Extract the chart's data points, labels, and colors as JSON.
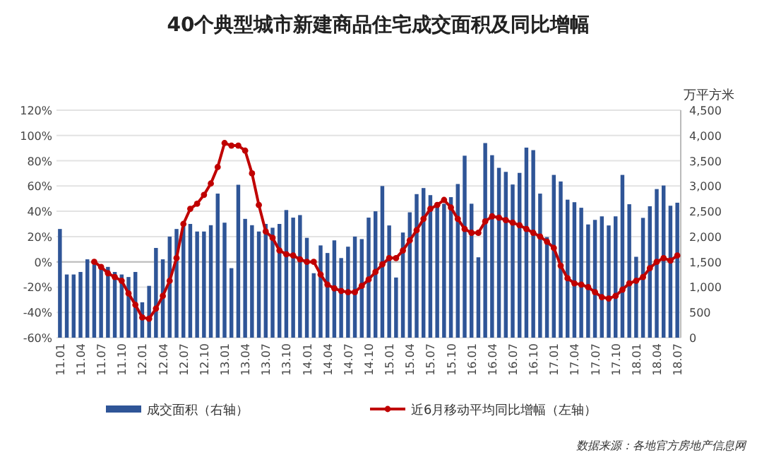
{
  "chart_data": {
    "type": "bar",
    "title": "40个典型城市新建商品住宅成交面积及同比增幅",
    "y2label": "万平方米",
    "categories": [
      "11.01",
      null,
      null,
      "11.04",
      null,
      null,
      "11.07",
      null,
      null,
      "11.10",
      null,
      null,
      "12.01",
      null,
      null,
      "12.04",
      null,
      null,
      "12.07",
      null,
      null,
      "12.10",
      null,
      null,
      "13.01",
      null,
      null,
      "13.04",
      null,
      null,
      "13.07",
      null,
      null,
      "13.10",
      null,
      null,
      "14.01",
      null,
      null,
      "14.04",
      null,
      null,
      "14.07",
      null,
      null,
      "14.10",
      null,
      null,
      "15.01",
      null,
      null,
      "15.04",
      null,
      null,
      "15.07",
      null,
      null,
      "15.10",
      null,
      null,
      "16.01",
      null,
      null,
      "16.04",
      null,
      null,
      "16.07",
      null,
      null,
      "16.10",
      null,
      null,
      "17.01",
      null,
      null,
      "17.04",
      null,
      null,
      "17.07",
      null,
      null,
      "17.10",
      null,
      null,
      "18.01",
      null,
      null,
      "18.04",
      null,
      null,
      "18.07"
    ],
    "series": [
      {
        "name": "成交面积（右轴）",
        "axis": "y2",
        "color": "#2f5597",
        "values": [
          2150,
          1250,
          1250,
          1300,
          1550,
          1450,
          1375,
          1400,
          1300,
          1250,
          1200,
          1300,
          700,
          1025,
          1775,
          1550,
          2000,
          2150,
          2250,
          2250,
          2100,
          2100,
          2225,
          2850,
          2275,
          1375,
          3025,
          2350,
          2225,
          2100,
          2250,
          2175,
          2250,
          2525,
          2375,
          2425,
          1975,
          1275,
          1825,
          1675,
          1925,
          1575,
          1800,
          2000,
          1950,
          2375,
          2500,
          3000,
          2220,
          1190,
          2080,
          2480,
          2840,
          2960,
          2820,
          2650,
          2650,
          2780,
          3040,
          3600,
          2650,
          1590,
          3850,
          3610,
          3360,
          3280,
          3030,
          3260,
          3760,
          3710,
          2850,
          1990,
          3220,
          3090,
          2730,
          2680,
          2570,
          2240,
          2330,
          2400,
          2220,
          2400,
          3220,
          2640,
          1600,
          2370,
          2600,
          2940,
          3010,
          2610,
          2670
        ]
      },
      {
        "name": "近6月移动平均同比增幅（左轴）",
        "type": "line",
        "axis": "y",
        "color": "#c00000",
        "marker": "circle",
        "values": [
          null,
          null,
          null,
          null,
          null,
          0,
          -4,
          -9,
          -12,
          -15,
          -25,
          -34,
          -44,
          -45,
          -37,
          -27,
          -15,
          3,
          30,
          42,
          46,
          53,
          62,
          75,
          94,
          92,
          92,
          88,
          70,
          45,
          24,
          19,
          9,
          6,
          5,
          2,
          0,
          0,
          -10,
          -18,
          -21,
          -23,
          -24,
          -24,
          -19,
          -14,
          -8,
          -2,
          3,
          3,
          9,
          17,
          25,
          34,
          42,
          45,
          49,
          43,
          34,
          26,
          23,
          23,
          32,
          36,
          35,
          33,
          31,
          29,
          26,
          23,
          20,
          16,
          11,
          -3,
          -13,
          -17,
          -18,
          -20,
          -24,
          -28,
          -29,
          -27,
          -22,
          -17,
          -15,
          -12,
          -5,
          0,
          3,
          1,
          5
        ]
      }
    ],
    "ylim": [
      -60,
      120
    ],
    "yticks": [
      {
        "value": -60,
        "label": "-60%"
      },
      {
        "value": -40,
        "label": "-40%"
      },
      {
        "value": -20,
        "label": "-20%"
      },
      {
        "value": 0,
        "label": "0%"
      },
      {
        "value": 20,
        "label": "20%"
      },
      {
        "value": 40,
        "label": "40%"
      },
      {
        "value": 60,
        "label": "60%"
      },
      {
        "value": 80,
        "label": "80%"
      },
      {
        "value": 100,
        "label": "100%"
      },
      {
        "value": 120,
        "label": "120%"
      }
    ],
    "y2lim": [
      0,
      4500
    ],
    "y2ticks": [
      0,
      500,
      {
        "value": 1000,
        "label": "1,000"
      },
      {
        "value": 1500,
        "label": "1,500"
      },
      {
        "value": 2000,
        "label": "2,000"
      },
      {
        "value": 2500,
        "label": "2,500"
      },
      {
        "value": 3000,
        "label": "3,000"
      },
      {
        "value": 3500,
        "label": "3,500"
      },
      {
        "value": 4000,
        "label": "4,000"
      },
      {
        "value": 4500,
        "label": "4,500"
      }
    ],
    "grid": "y",
    "legend": "bottom",
    "annotations": [
      "数据来源：各地官方房地产信息网"
    ]
  }
}
